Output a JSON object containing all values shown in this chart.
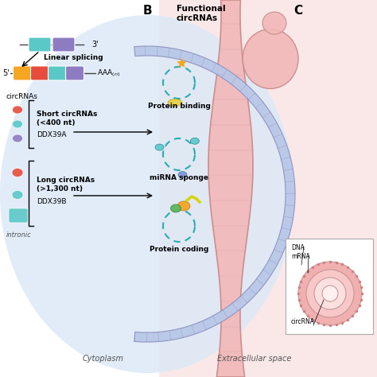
{
  "bg_color": "#ffffff",
  "label_B": "B",
  "label_C": "C",
  "label_cytoplasm": "Cytoplasm",
  "label_extracellular": "Extracellular space",
  "label_linear": "Linear splicing",
  "label_short": "Short circRNAs\n(<400 nt)",
  "label_ddx39a": "DDX39A",
  "label_long": "Long circRNAs\n(>1,300 nt)",
  "label_ddx39b": "DDX39B",
  "label_functional": "Functional\ncircRNAs",
  "label_protein_binding": "Protein binding",
  "label_mirna": "miRNA sponge",
  "label_protein_coding": "Protein coding",
  "label_dna": "DNA",
  "label_mrna": "mRNA",
  "label_circrna_box": "circRNA",
  "exon_colors": [
    "#f5a623",
    "#e74c3c",
    "#5bc8c8",
    "#8e7cc3"
  ],
  "exon_colors_top": [
    "#5bc8c8",
    "#8e7cc3"
  ],
  "cyto_fill": "#dce9f7",
  "cyto_membrane_fill": "#b8c8e8",
  "cyto_membrane_edge": "#9090c0",
  "pink_bg": "#fae8e8",
  "gut_fill": "#f2b8b8",
  "gut_edge": "#c88888",
  "circrna_stroke": "#c0392b",
  "teal_color": "#2aabb0",
  "orange_color": "#f5a623",
  "green_color": "#5cb85c",
  "yellow_color": "#d4d400",
  "inset_fill": "#ffffff",
  "inset_edge": "#aaaaaa",
  "vesicle_colors": [
    "#f0b8b8",
    "#f5c8c8",
    "#fad8d8"
  ],
  "text_gray": "#555555",
  "short_circ_colors": [
    "#e74c3c",
    "#5bc8c8",
    "#8e7cc3"
  ],
  "long_circ_colors": [
    "#e74c3c",
    "#5bc8c8"
  ]
}
